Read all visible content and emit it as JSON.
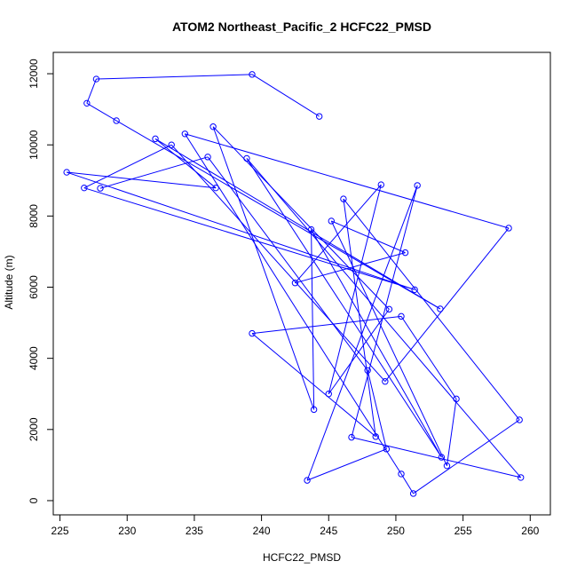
{
  "chart_data": {
    "type": "line",
    "title": "ATOM2 Northeast_Pacific_2 HCFC22_PMSD",
    "xlabel": "HCFC22_PMSD",
    "ylabel": "Altitude (m)",
    "xlim": [
      224.5,
      261.5
    ],
    "ylim": [
      -400,
      12600
    ],
    "x_ticks": [
      225,
      230,
      235,
      240,
      245,
      250,
      255,
      260
    ],
    "y_ticks": [
      0,
      2000,
      4000,
      6000,
      8000,
      10000,
      12000
    ],
    "grid": false,
    "legend": "none",
    "series_color": "#0000ff",
    "marker": "open-circle",
    "x": [
      244.3,
      239.3,
      227.7,
      227.0,
      229.2,
      253.3,
      232.1,
      236.6,
      225.5,
      251.4,
      226.8,
      233.3,
      249.2,
      258.4,
      234.3,
      250.4,
      251.3,
      259.2,
      246.1,
      248.5,
      239.3,
      250.4,
      254.5,
      253.8,
      245.2,
      250.7,
      242.5,
      248.9,
      245.0,
      249.5,
      236.4,
      243.9,
      243.7,
      253.4,
      238.9,
      259.3,
      246.7,
      251.6,
      243.4,
      249.3,
      247.9,
      236.0,
      228.0
    ],
    "y": [
      10800,
      11980,
      11850,
      11170,
      10680,
      5390,
      10170,
      8790,
      9230,
      5930,
      8790,
      10000,
      3350,
      7660,
      10310,
      750,
      200,
      2270,
      8480,
      1800,
      4700,
      5180,
      2860,
      980,
      7860,
      6970,
      6120,
      8880,
      3000,
      5380,
      10510,
      2560,
      7620,
      1220,
      9620,
      650,
      1780,
      8860,
      570,
      1450,
      3660,
      9660,
      8780
    ]
  }
}
